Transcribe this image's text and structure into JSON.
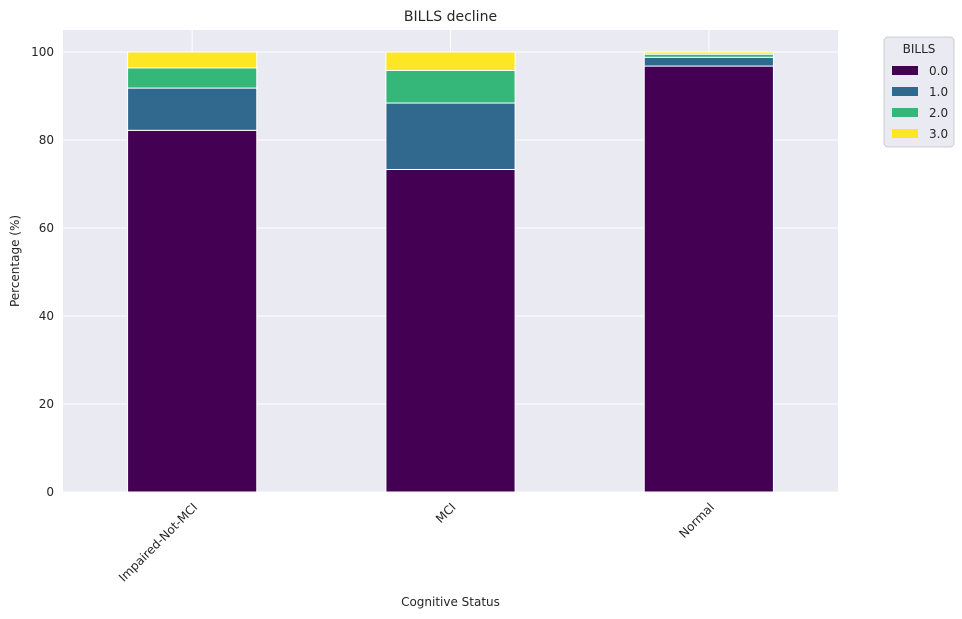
{
  "chart_data": {
    "type": "bar",
    "stacked": true,
    "title": "BILLS decline",
    "xlabel": "Cognitive Status",
    "ylabel": "Percentage (%)",
    "ylim": [
      0,
      105
    ],
    "yticks": [
      0,
      20,
      40,
      60,
      80,
      100
    ],
    "grid": true,
    "legend_placement": "outside-top-right",
    "legend_title": "BILLS",
    "categories": [
      "Impaired-Not-MCI",
      "MCI",
      "Normal"
    ],
    "series": [
      {
        "name": "0.0",
        "color": "#440154",
        "values": [
          82.2,
          73.3,
          96.8
        ]
      },
      {
        "name": "1.0",
        "color": "#31688e",
        "values": [
          9.6,
          15.1,
          2.0
        ]
      },
      {
        "name": "2.0",
        "color": "#35b779",
        "values": [
          4.6,
          7.4,
          0.7
        ]
      },
      {
        "name": "3.0",
        "color": "#fde725",
        "values": [
          3.6,
          4.2,
          0.5
        ]
      }
    ],
    "colors": {
      "plot_background": "#eaeaf2",
      "grid": "#ffffff",
      "bar_edge": "#ffffff"
    }
  }
}
